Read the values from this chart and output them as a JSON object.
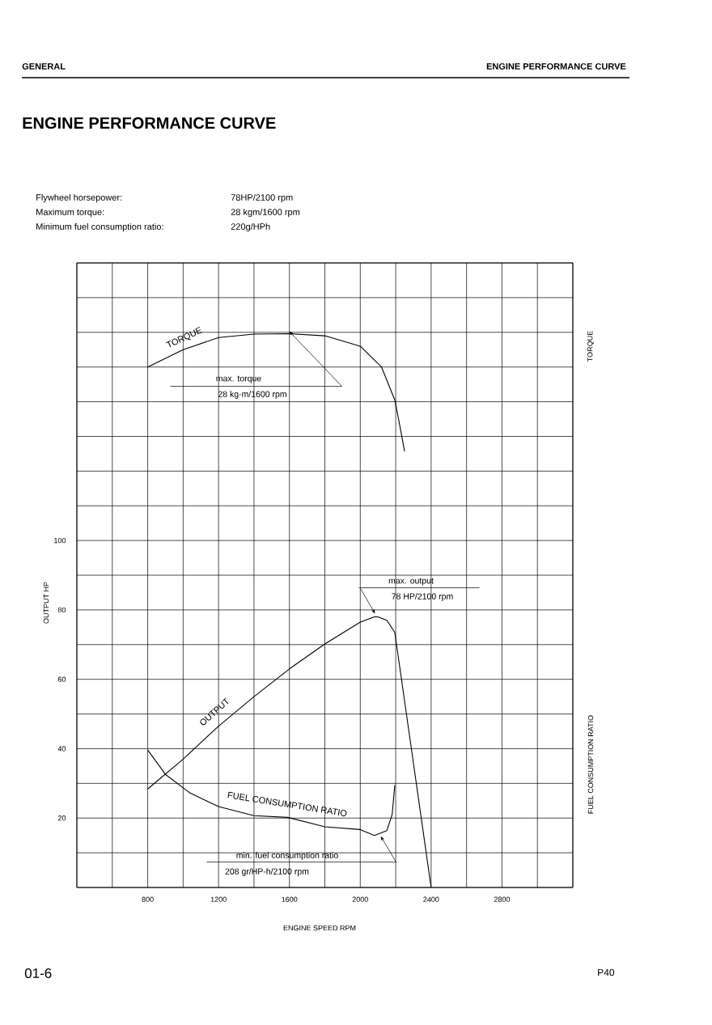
{
  "chart_data": {
    "type": "line",
    "title": "ENGINE PERFORMANCE CURVE",
    "xlabel": "ENGINE SPEED RPM",
    "ylabel": "OUTPUT HP",
    "y2label": "TORQUE",
    "y3label": "FUEL CONSUMPTION RATIO",
    "xlim": [
      400,
      3200
    ],
    "ylim": [
      0,
      180
    ],
    "xticks": [
      {
        "value": 400,
        "label": null
      },
      {
        "value": 600,
        "label": null
      },
      800,
      {
        "value": 1000,
        "label": null
      },
      1200,
      {
        "value": 1400,
        "label": null
      },
      1600,
      {
        "value": 1800,
        "label": null
      },
      2000,
      {
        "value": 2200,
        "label": null
      },
      2400,
      {
        "value": 2600,
        "label": null
      },
      2800,
      {
        "value": 3000,
        "label": null
      },
      {
        "value": 3200,
        "label": null
      }
    ],
    "yticks": [
      {
        "value": 0,
        "label": null
      },
      {
        "value": 10,
        "label": null
      },
      20,
      {
        "value": 30,
        "label": null
      },
      40,
      {
        "value": 50,
        "label": null
      },
      60,
      {
        "value": 70,
        "label": null
      },
      80,
      {
        "value": 90,
        "label": null
      },
      100,
      {
        "value": 110,
        "label": null
      },
      {
        "value": 120,
        "label": null
      },
      {
        "value": 130,
        "label": null
      },
      {
        "value": 140,
        "label": null
      },
      {
        "value": 150,
        "label": null
      },
      {
        "value": 160,
        "label": null
      },
      {
        "value": 170,
        "label": null
      },
      {
        "value": 180,
        "label": null
      }
    ],
    "grid": true,
    "series": [
      {
        "name": "TORQUE",
        "color": "#000000",
        "x": [
          800,
          1000,
          1200,
          1400,
          1600,
          1800,
          2000,
          2120,
          2195,
          2220,
          2250
        ],
        "values": [
          150,
          155,
          158.5,
          159.5,
          159.6,
          159,
          156,
          150,
          140.5,
          134,
          125.7
        ]
      },
      {
        "name": "OUTPUT",
        "color": "#000000",
        "x": [
          800,
          1000,
          1200,
          1400,
          1600,
          1800,
          2000,
          2080,
          2100,
          2150,
          2195,
          2255,
          2400
        ],
        "values": [
          28.4,
          37,
          46.5,
          55,
          63,
          70.2,
          76.5,
          78,
          78,
          77,
          73.5,
          52,
          0
        ]
      },
      {
        "name": "FUEL CONSUMPTION RATIO",
        "color": "#000000",
        "x": [
          800,
          900,
          1040,
          1200,
          1400,
          1590,
          1800,
          2000,
          2080,
          2150,
          2180,
          2195
        ],
        "values": [
          39.6,
          32.6,
          27.2,
          23.3,
          20.7,
          20.2,
          17.5,
          16.7,
          15,
          16.4,
          21,
          29.5
        ]
      }
    ],
    "annotations": [
      "GENERAL",
      "ENGINE PERFORMANCE CURVE",
      "Flywheel horsepower:",
      "78HP/2100 rpm",
      "Maximum torque:",
      "28 kgm/1600 rpm",
      "Minimum fuel consumption ratio:",
      "220g/HPh",
      "max. torque",
      "28 kg·m/1600 rpm",
      "max. output",
      "78 HP/2100 rpm",
      "min. fuel consumption ratio",
      "208 gr/HP-h/2100 rpm",
      "01-6",
      "P40"
    ]
  }
}
